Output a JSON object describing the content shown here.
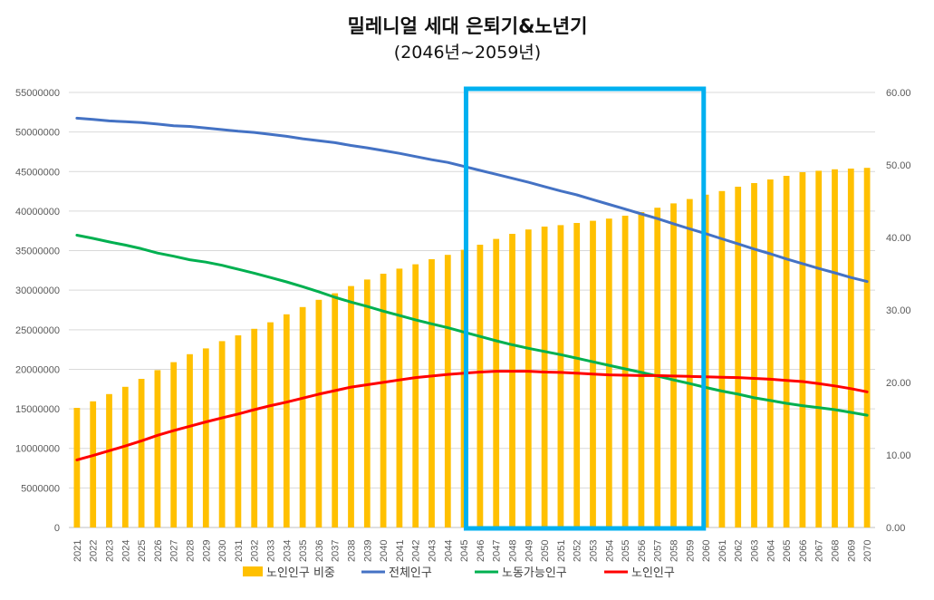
{
  "chart_data": {
    "type": "bar",
    "title": "밀레니얼 세대 은퇴기&노년기",
    "subtitle": "(2046년~2059년)",
    "categories": [
      "2021",
      "2022",
      "2023",
      "2024",
      "2025",
      "2026",
      "2027",
      "2028",
      "2029",
      "2030",
      "2031",
      "2032",
      "2033",
      "2034",
      "2035",
      "2036",
      "2037",
      "2038",
      "2039",
      "2040",
      "2041",
      "2042",
      "2043",
      "2044",
      "2045",
      "2046",
      "2047",
      "2048",
      "2049",
      "2050",
      "2051",
      "2052",
      "2053",
      "2054",
      "2055",
      "2056",
      "2057",
      "2058",
      "2059",
      "2060",
      "2061",
      "2062",
      "2063",
      "2064",
      "2065",
      "2066",
      "2067",
      "2068",
      "2069",
      "2070"
    ],
    "y_left": {
      "ylim": [
        0,
        55000000
      ],
      "ticks": [
        "0",
        "5000000",
        "10000000",
        "15000000",
        "20000000",
        "25000000",
        "30000000",
        "35000000",
        "40000000",
        "45000000",
        "50000000",
        "55000000"
      ]
    },
    "y_right": {
      "ylim": [
        0,
        60
      ],
      "ticks": [
        "0.00",
        "10.00",
        "20.00",
        "30.00",
        "40.00",
        "50.00",
        "60.00"
      ]
    },
    "grid": true,
    "legend_position": "bottom",
    "highlight": {
      "from": "2046",
      "to": "2059",
      "color": "#00B0F0"
    },
    "series": [
      {
        "name": "노인인구 비중",
        "type": "bar",
        "axis": "right",
        "color": "#FFC000",
        "values": [
          16.5,
          17.4,
          18.4,
          19.4,
          20.5,
          21.7,
          22.8,
          23.9,
          24.7,
          25.7,
          26.5,
          27.4,
          28.3,
          29.4,
          30.4,
          31.4,
          32.3,
          33.3,
          34.2,
          35.0,
          35.7,
          36.3,
          37.0,
          37.6,
          38.3,
          39.0,
          39.8,
          40.5,
          41.1,
          41.5,
          41.7,
          42.0,
          42.3,
          42.6,
          43.0,
          43.5,
          44.1,
          44.7,
          45.3,
          45.9,
          46.4,
          47.0,
          47.5,
          48.0,
          48.5,
          49.0,
          49.2,
          49.4,
          49.5,
          49.6
        ]
      },
      {
        "name": "전체인구",
        "type": "line",
        "axis": "left",
        "color": "#4472C4",
        "values": [
          51750000,
          51600000,
          51400000,
          51300000,
          51200000,
          51000000,
          50800000,
          50700000,
          50500000,
          50300000,
          50100000,
          49950000,
          49700000,
          49450000,
          49150000,
          48900000,
          48650000,
          48300000,
          48000000,
          47650000,
          47300000,
          46900000,
          46500000,
          46150000,
          45650000,
          45150000,
          44650000,
          44150000,
          43650000,
          43100000,
          42550000,
          42050000,
          41450000,
          40850000,
          40250000,
          39650000,
          39050000,
          38400000,
          37750000,
          37150000,
          36500000,
          35850000,
          35200000,
          34600000,
          33950000,
          33350000,
          32750000,
          32200000,
          31600000,
          31100000
        ]
      },
      {
        "name": "노동가능인구",
        "type": "line",
        "axis": "left",
        "color": "#00B050",
        "values": [
          36950000,
          36550000,
          36100000,
          35700000,
          35250000,
          34700000,
          34300000,
          33850000,
          33550000,
          33150000,
          32650000,
          32150000,
          31600000,
          31050000,
          30450000,
          29800000,
          29100000,
          28500000,
          27950000,
          27350000,
          26800000,
          26250000,
          25750000,
          25250000,
          24700000,
          24150000,
          23600000,
          23100000,
          22650000,
          22250000,
          21850000,
          21400000,
          20950000,
          20500000,
          20050000,
          19600000,
          19150000,
          18650000,
          18200000,
          17700000,
          17250000,
          16850000,
          16400000,
          16050000,
          15700000,
          15400000,
          15150000,
          14900000,
          14550000,
          14200000
        ]
      },
      {
        "name": "노인인구",
        "type": "line",
        "axis": "left",
        "color": "#FF0000",
        "values": [
          8550000,
          9100000,
          9700000,
          10300000,
          10950000,
          11650000,
          12250000,
          12800000,
          13350000,
          13850000,
          14350000,
          14900000,
          15400000,
          15850000,
          16350000,
          16850000,
          17300000,
          17750000,
          18050000,
          18350000,
          18650000,
          18950000,
          19150000,
          19350000,
          19500000,
          19650000,
          19750000,
          19750000,
          19750000,
          19650000,
          19600000,
          19500000,
          19400000,
          19300000,
          19250000,
          19200000,
          19200000,
          19150000,
          19100000,
          19050000,
          19000000,
          18950000,
          18850000,
          18750000,
          18600000,
          18450000,
          18200000,
          17900000,
          17550000,
          17150000
        ]
      }
    ]
  }
}
